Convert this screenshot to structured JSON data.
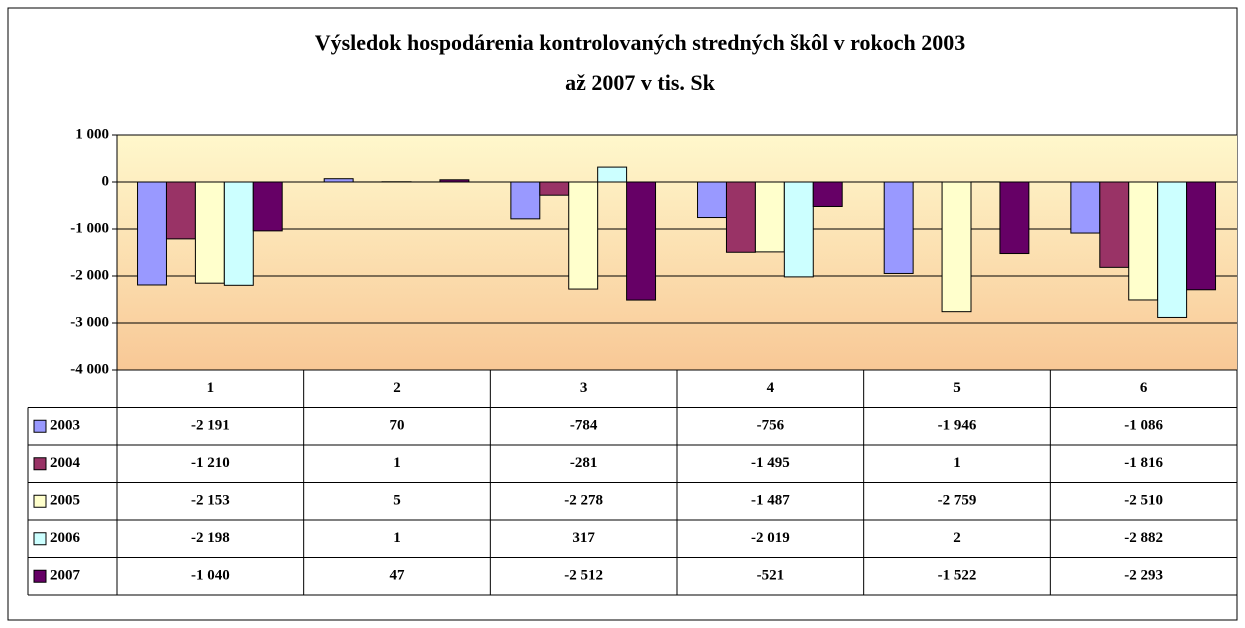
{
  "chart_data": {
    "type": "bar",
    "title": [
      "Výsledok hospodárenia kontrolovaných stredných škôl v rokoch 2003",
      "až 2007 v tis. Sk"
    ],
    "categories": [
      "1",
      "2",
      "3",
      "4",
      "5",
      "6"
    ],
    "series": [
      {
        "name": "2003",
        "color": "#9999ff",
        "values": [
          -2191,
          70,
          -784,
          -756,
          -1946,
          -1086
        ],
        "value_labels": [
          "-2 191",
          "70",
          "-784",
          "-756",
          "-1 946",
          "-1 086"
        ]
      },
      {
        "name": "2004",
        "color": "#993366",
        "values": [
          -1210,
          1,
          -281,
          -1495,
          1,
          -1816
        ],
        "value_labels": [
          "-1 210",
          "1",
          "-281",
          "-1 495",
          "1",
          "-1 816"
        ]
      },
      {
        "name": "2005",
        "color": "#ffffcc",
        "values": [
          -2153,
          5,
          -2278,
          -1487,
          -2759,
          -2510
        ],
        "value_labels": [
          "-2 153",
          "5",
          "-2 278",
          "-1 487",
          "-2 759",
          "-2 510"
        ]
      },
      {
        "name": "2006",
        "color": "#ccffff",
        "values": [
          -2198,
          1,
          317,
          -2019,
          2,
          -2882
        ],
        "value_labels": [
          "-2 198",
          "1",
          "317",
          "-2 019",
          "2",
          "-2 882"
        ]
      },
      {
        "name": "2007",
        "color": "#660066",
        "values": [
          -1040,
          47,
          -2512,
          -521,
          -1522,
          -2293
        ],
        "value_labels": [
          "-1 040",
          "47",
          "-2 512",
          "-521",
          "-1 522",
          "-2 293"
        ]
      }
    ],
    "ylim": [
      -4000,
      1000
    ],
    "yticks": [
      {
        "value": -4000,
        "label": "-4 000"
      },
      {
        "value": -3000,
        "label": "-3 000"
      },
      {
        "value": -2000,
        "label": "-2 000"
      },
      {
        "value": -1000,
        "label": "-1 000"
      },
      0,
      {
        "value": 1000,
        "label": "1 000"
      }
    ],
    "grid": true
  }
}
